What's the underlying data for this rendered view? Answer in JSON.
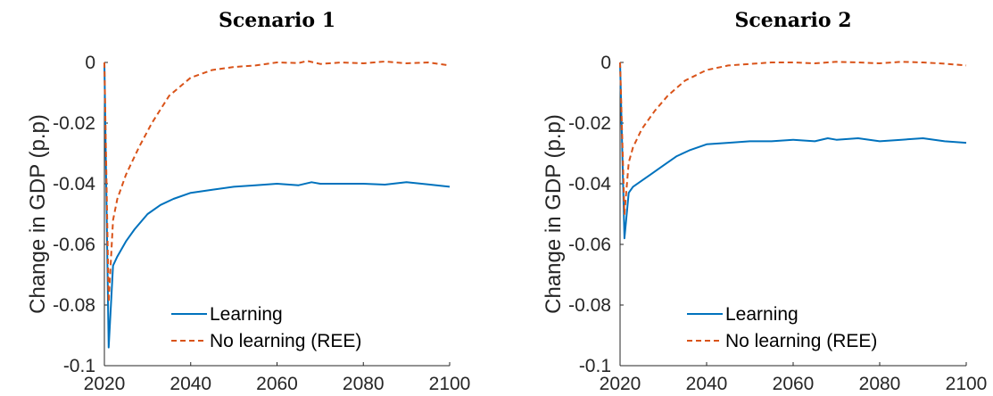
{
  "chart_data": [
    {
      "type": "line",
      "title": "Scenario 1",
      "xlabel": "",
      "ylabel": "Change in GDP (p.p)",
      "xlim": [
        2020,
        2100
      ],
      "ylim": [
        -0.1,
        0
      ],
      "xticks": [
        2020,
        2040,
        2060,
        2080,
        2100
      ],
      "xtick_labels": [
        "2020",
        "2040",
        "2060",
        "2080",
        "2100"
      ],
      "yticks": [
        0,
        -0.02,
        -0.04,
        -0.06,
        -0.08,
        -0.1
      ],
      "ytick_labels": [
        "0",
        "-0.02",
        "-0.04",
        "-0.06",
        "-0.08",
        "-0.1"
      ],
      "grid": false,
      "legend_position": "bottom-center",
      "series": [
        {
          "name": "Learning",
          "style": "solid",
          "color": "#0072BD",
          "x": [
            2020,
            2021,
            2022,
            2023,
            2025,
            2027,
            2030,
            2033,
            2036,
            2040,
            2045,
            2050,
            2055,
            2060,
            2065,
            2068,
            2070,
            2075,
            2080,
            2085,
            2090,
            2095,
            2100
          ],
          "y": [
            0,
            -0.094,
            -0.067,
            -0.064,
            -0.059,
            -0.055,
            -0.05,
            -0.047,
            -0.045,
            -0.043,
            -0.042,
            -0.041,
            -0.0405,
            -0.04,
            -0.0405,
            -0.0395,
            -0.04,
            -0.04,
            -0.04,
            -0.0403,
            -0.0395,
            -0.0402,
            -0.041
          ]
        },
        {
          "name": "No learning (REE)",
          "style": "dashed",
          "color": "#D95319",
          "x": [
            2020,
            2021,
            2022,
            2023,
            2025,
            2028,
            2031,
            2035,
            2040,
            2045,
            2050,
            2055,
            2060,
            2065,
            2067,
            2070,
            2075,
            2080,
            2085,
            2090,
            2095,
            2100
          ],
          "y": [
            0,
            -0.079,
            -0.052,
            -0.045,
            -0.037,
            -0.028,
            -0.02,
            -0.011,
            -0.005,
            -0.0025,
            -0.0015,
            -0.001,
            0,
            -0.0002,
            0.0005,
            -0.0005,
            0,
            -0.0003,
            0.0003,
            -0.0003,
            0,
            -0.001
          ]
        }
      ]
    },
    {
      "type": "line",
      "title": "Scenario 2",
      "xlabel": "",
      "ylabel": "Change in GDP (p.p)",
      "xlim": [
        2020,
        2100
      ],
      "ylim": [
        -0.1,
        0
      ],
      "xticks": [
        2020,
        2040,
        2060,
        2080,
        2100
      ],
      "xtick_labels": [
        "2020",
        "2040",
        "2060",
        "2080",
        "2100"
      ],
      "yticks": [
        0,
        -0.02,
        -0.04,
        -0.06,
        -0.08,
        -0.1
      ],
      "ytick_labels": [
        "0",
        "-0.02",
        "-0.04",
        "-0.06",
        "-0.08",
        "-0.1"
      ],
      "grid": false,
      "legend_position": "bottom-center",
      "series": [
        {
          "name": "Learning",
          "style": "solid",
          "color": "#0072BD",
          "x": [
            2020,
            2021,
            2022,
            2023,
            2025,
            2027,
            2030,
            2033,
            2036,
            2040,
            2045,
            2050,
            2055,
            2060,
            2065,
            2068,
            2070,
            2075,
            2080,
            2085,
            2090,
            2095,
            2100
          ],
          "y": [
            0,
            -0.058,
            -0.043,
            -0.041,
            -0.039,
            -0.037,
            -0.034,
            -0.031,
            -0.029,
            -0.027,
            -0.0265,
            -0.026,
            -0.026,
            -0.0255,
            -0.026,
            -0.025,
            -0.0255,
            -0.025,
            -0.026,
            -0.0255,
            -0.025,
            -0.026,
            -0.0265
          ]
        },
        {
          "name": "No learning (REE)",
          "style": "dashed",
          "color": "#D95319",
          "x": [
            2020,
            2021,
            2022,
            2023,
            2025,
            2028,
            2031,
            2035,
            2040,
            2045,
            2050,
            2055,
            2060,
            2065,
            2070,
            2075,
            2080,
            2085,
            2090,
            2095,
            2100
          ],
          "y": [
            0,
            -0.05,
            -0.033,
            -0.028,
            -0.022,
            -0.016,
            -0.011,
            -0.006,
            -0.0025,
            -0.001,
            -0.0005,
            0,
            0,
            -0.0003,
            0.0002,
            0,
            -0.0003,
            0.0002,
            0,
            -0.0004,
            -0.001
          ]
        }
      ]
    }
  ]
}
